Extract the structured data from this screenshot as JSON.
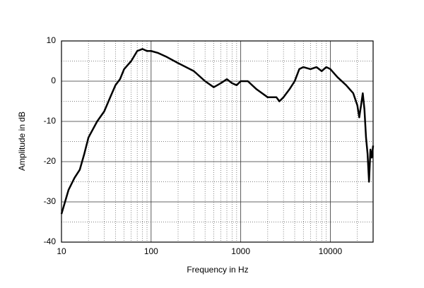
{
  "chart_data": {
    "type": "line",
    "xlabel": "Frequency  in Hz",
    "ylabel": "Amplitude in dB",
    "xscale": "log",
    "grid": true,
    "xlim": [
      10,
      30000
    ],
    "ylim": [
      -40,
      10
    ],
    "xticks": [
      10,
      100,
      1000,
      10000
    ],
    "yticks": [
      -40,
      -30,
      -20,
      -10,
      0,
      10
    ],
    "series": [
      {
        "color": "#000000",
        "x": [
          10,
          12,
          14,
          16,
          18,
          20,
          25,
          30,
          35,
          40,
          45,
          50,
          60,
          70,
          80,
          90,
          100,
          120,
          150,
          200,
          300,
          400,
          500,
          600,
          700,
          800,
          900,
          1000,
          1200,
          1500,
          2000,
          2500,
          2700,
          3000,
          3500,
          4000,
          4500,
          5000,
          6000,
          7000,
          8000,
          9000,
          10000,
          12000,
          15000,
          18000,
          20000,
          21000,
          22000,
          23000,
          24000,
          25000,
          26000,
          27000,
          28000,
          29000,
          30000
        ],
        "values": [
          -33,
          -27,
          -24,
          -22,
          -18,
          -14,
          -10,
          -7.5,
          -4,
          -1,
          0.5,
          3,
          5,
          7.5,
          8,
          7.5,
          7.5,
          7,
          6,
          4.5,
          2.5,
          0,
          -1.5,
          -0.5,
          0.5,
          -0.5,
          -1,
          0,
          0,
          -2,
          -4,
          -4,
          -5,
          -4,
          -2,
          0,
          3,
          3.5,
          3,
          3.5,
          2.5,
          3.5,
          3,
          1,
          -1,
          -3,
          -6,
          -9,
          -6,
          -3,
          -7,
          -14,
          -18,
          -25,
          -17,
          -19,
          -16
        ]
      }
    ]
  }
}
